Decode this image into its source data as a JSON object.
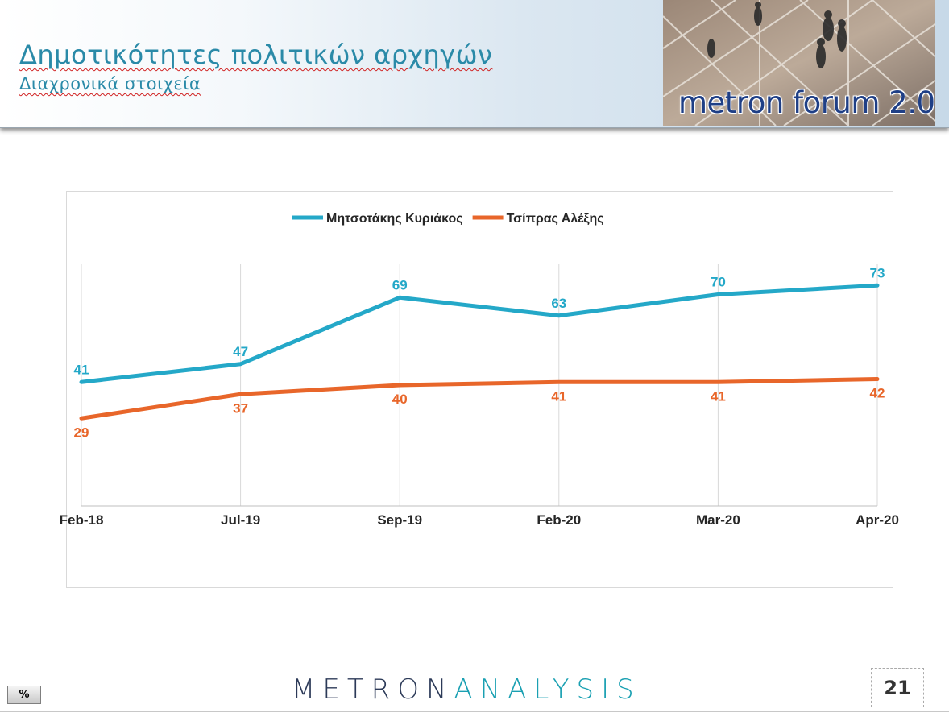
{
  "header": {
    "title": "Δημοτικότητες πολιτικών αρχηγών",
    "subtitle": "Διαχρονικά στοιχεία",
    "logo_text": "metron forum 2.0"
  },
  "footer": {
    "logo_part1": "METRON",
    "logo_part2": "ANALYSIS",
    "page_number": "21",
    "percent_button_label": "%"
  },
  "colors": {
    "title": "#2a8aa8",
    "series_1": "#24a8c8",
    "series_2": "#e8662a",
    "logo_dark": "#2c3a58",
    "logo_accent": "#1aa0b2"
  },
  "chart_data": {
    "type": "line",
    "categories": [
      "Feb-18",
      "Jul-19",
      "Sep-19",
      "Feb-20",
      "Mar-20",
      "Apr-20"
    ],
    "series": [
      {
        "name": "Μητσοτάκης Κυριάκος",
        "values": [
          41,
          47,
          69,
          63,
          70,
          73
        ],
        "color": "#24a8c8",
        "label_position": "above"
      },
      {
        "name": "Τσίπρας Αλέξης",
        "values": [
          29,
          37,
          40,
          41,
          41,
          42
        ],
        "color": "#e8662a",
        "label_position": "below"
      }
    ],
    "ylim": [
      0,
      80
    ],
    "legend": "top-center",
    "grid": "vertical",
    "data_labels": true,
    "title": "",
    "xlabel": "",
    "ylabel": ""
  }
}
